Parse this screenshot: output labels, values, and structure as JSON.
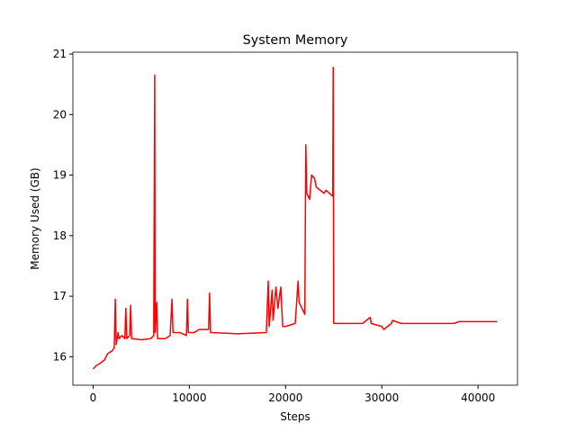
{
  "chart_data": {
    "type": "line",
    "title": "System Memory",
    "xlabel": "Steps",
    "ylabel": "Memory Used (GB)",
    "x": [
      0,
      300,
      800,
      1200,
      1500,
      2000,
      2200,
      2300,
      2400,
      2600,
      2700,
      3000,
      3300,
      3400,
      3500,
      3800,
      3900,
      4000,
      5000,
      6000,
      6300,
      6400,
      6450,
      6600,
      6700,
      7500,
      8000,
      8200,
      8300,
      9000,
      9700,
      9800,
      9900,
      10500,
      11000,
      12000,
      12100,
      12200,
      15000,
      18000,
      18200,
      18300,
      18600,
      18700,
      19000,
      19200,
      19500,
      19700,
      20000,
      21000,
      21300,
      21400,
      22000,
      22100,
      22200,
      22500,
      22700,
      23000,
      23200,
      24000,
      24200,
      24900,
      24950,
      25000,
      26000,
      28000,
      28800,
      28900,
      30000,
      30200,
      31000,
      31100,
      32000,
      35000,
      37500,
      38000,
      40000,
      42000
    ],
    "series": [
      {
        "name": "Memory",
        "color": "#ff0000",
        "values": [
          15.8,
          15.85,
          15.9,
          15.95,
          16.05,
          16.1,
          16.15,
          16.95,
          16.2,
          16.4,
          16.3,
          16.35,
          16.3,
          16.8,
          16.3,
          16.35,
          16.85,
          16.3,
          16.28,
          16.3,
          16.35,
          20.65,
          16.4,
          16.9,
          16.3,
          16.3,
          16.35,
          16.95,
          16.4,
          16.4,
          16.35,
          16.95,
          16.4,
          16.4,
          16.45,
          16.45,
          17.05,
          16.4,
          16.38,
          16.4,
          17.25,
          16.5,
          17.1,
          16.6,
          17.15,
          16.8,
          17.15,
          16.5,
          16.5,
          16.55,
          17.25,
          16.9,
          16.7,
          19.5,
          18.7,
          18.6,
          19.0,
          18.95,
          18.8,
          18.7,
          18.75,
          18.65,
          20.78,
          16.55,
          16.55,
          16.55,
          16.65,
          16.55,
          16.5,
          16.45,
          16.55,
          16.6,
          16.55,
          16.55,
          16.55,
          16.58,
          16.58,
          16.58
        ]
      }
    ],
    "xlim": [
      -2100,
      44100
    ],
    "ylim": [
      15.53,
      21.03
    ],
    "xticks": [
      0,
      10000,
      20000,
      30000,
      40000
    ],
    "yticks": [
      16,
      17,
      18,
      19,
      20,
      21
    ]
  }
}
